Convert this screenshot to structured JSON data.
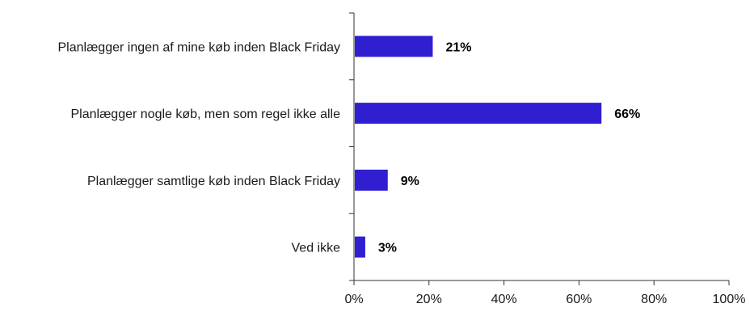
{
  "chart_data": {
    "type": "bar",
    "orientation": "horizontal",
    "title": "",
    "xlabel": "",
    "ylabel": "",
    "categories": [
      "Planlægger ingen af mine køb inden Black Friday",
      "Planlægger nogle køb, men som regel ikke alle",
      "Planlægger samtlige køb inden Black Friday",
      "Ved ikke"
    ],
    "values": [
      21,
      66,
      9,
      3
    ],
    "value_labels": [
      "21%",
      "66%",
      "9%",
      "3%"
    ],
    "xlim": [
      0,
      100
    ],
    "x_ticks": [
      0,
      20,
      40,
      60,
      80,
      100
    ],
    "x_tick_labels": [
      "0%",
      "20%",
      "40%",
      "60%",
      "80%",
      "100%"
    ],
    "grid": false,
    "legend": "none",
    "bar_color": "#2f1fd0"
  }
}
